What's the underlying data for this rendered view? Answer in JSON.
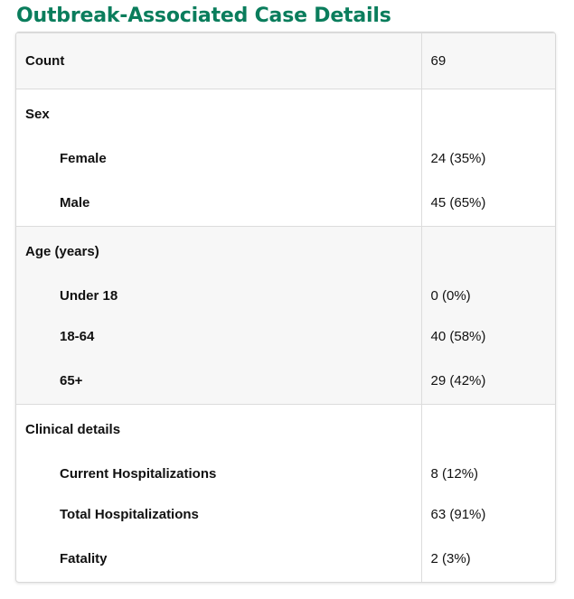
{
  "title": "Outbreak-Associated Case Details",
  "count": {
    "label": "Count",
    "value": "69"
  },
  "sex": {
    "label": "Sex",
    "rows": [
      {
        "label": "Female",
        "value": "24 (35%)"
      },
      {
        "label": "Male",
        "value": "45 (65%)"
      }
    ]
  },
  "age": {
    "label": "Age (years)",
    "rows": [
      {
        "label": "Under 18",
        "value": "0 (0%)"
      },
      {
        "label": "18-64",
        "value": "40 (58%)"
      },
      {
        "label": "65+",
        "value": "29 (42%)"
      }
    ]
  },
  "clinical": {
    "label": "Clinical details",
    "rows": [
      {
        "label": "Current Hospitalizations",
        "value": "8 (12%)"
      },
      {
        "label": "Total Hospitalizations",
        "value": "63 (91%)"
      },
      {
        "label": "Fatality",
        "value": "2 (3%)"
      }
    ]
  },
  "colors": {
    "title": "#0a7d5c",
    "shaded_row": "#f7f7f7",
    "border": "#dcdcdc"
  }
}
